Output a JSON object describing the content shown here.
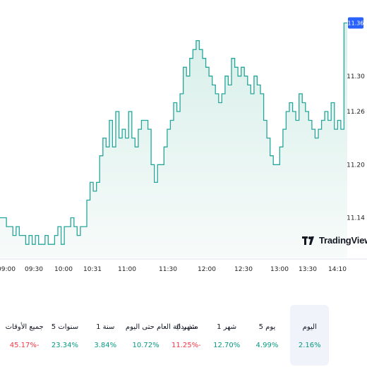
{
  "chart_data": {
    "type": "area",
    "x_tick_labels": [
      "09:00",
      "09:30",
      "10:00",
      "10:31",
      "11:00",
      "11:30",
      "12:00",
      "12:30",
      "13:00",
      "13:30",
      "14:10"
    ],
    "y_tick_labels": [
      "11.36",
      "11.30",
      "11.26",
      "11.20",
      "11.14"
    ],
    "last_price_label": "11.36",
    "ylim": [
      11.095,
      11.37
    ],
    "series": [
      {
        "values": [
          11.14,
          11.14,
          11.13,
          11.13,
          11.12,
          11.13,
          11.12,
          11.12,
          11.11,
          11.12,
          11.11,
          11.12,
          11.11,
          11.11,
          11.12,
          11.11,
          11.11,
          11.12,
          11.13,
          11.11,
          11.13,
          11.13,
          11.14,
          11.13,
          11.12,
          11.13,
          11.13,
          11.16,
          11.18,
          11.17,
          11.18,
          11.21,
          11.23,
          11.22,
          11.25,
          11.22,
          11.26,
          11.23,
          11.24,
          11.23,
          11.26,
          11.23,
          11.22,
          11.24,
          11.25,
          11.25,
          11.24,
          11.2,
          11.18,
          11.2,
          11.2,
          11.22,
          11.24,
          11.25,
          11.27,
          11.26,
          11.28,
          11.31,
          11.3,
          11.32,
          11.33,
          11.34,
          11.33,
          11.32,
          11.31,
          11.3,
          11.29,
          11.28,
          11.27,
          11.28,
          11.3,
          11.29,
          11.32,
          11.31,
          11.3,
          11.31,
          11.3,
          11.29,
          11.28,
          11.3,
          11.29,
          11.28,
          11.25,
          11.23,
          11.21,
          11.2,
          11.2,
          11.22,
          11.24,
          11.26,
          11.27,
          11.26,
          11.25,
          11.28,
          11.27,
          11.26,
          11.25,
          11.24,
          11.23,
          11.24,
          11.25,
          11.26,
          11.25,
          11.27,
          11.24,
          11.25,
          11.24,
          11.36,
          11.36
        ]
      }
    ],
    "colors": {
      "line": "#26a69a",
      "fill_top": "#d7efe9",
      "fill_bottom": "#f7fbfa",
      "badge": "#2962ff"
    },
    "grid": false,
    "y_axis_side": "right"
  },
  "watermark": {
    "text": "TradingView",
    "icon": "tradingview-logo-icon"
  },
  "performance": [
    {
      "label": "اليوم",
      "value": "2.16%",
      "trend": "positive",
      "active": true
    },
    {
      "label": "5 يوم",
      "value": "4.99%",
      "trend": "positive",
      "active": false
    },
    {
      "label": "1 شهر",
      "value": "12.70%",
      "trend": "positive",
      "active": false
    },
    {
      "label": "6 شهر",
      "value": "11.25%-",
      "trend": "negative",
      "active": false
    },
    {
      "label": "منذ بداية العام حتى اليوم",
      "value": "10.72%",
      "trend": "positive",
      "active": false
    },
    {
      "label": "1 سنة",
      "value": "3.84%",
      "trend": "positive",
      "active": false
    },
    {
      "label": "5 سنوات",
      "value": "23.34%",
      "trend": "positive",
      "active": false
    },
    {
      "label": "جميع الأوقات",
      "value": "45.17%-",
      "trend": "negative",
      "active": false
    }
  ]
}
